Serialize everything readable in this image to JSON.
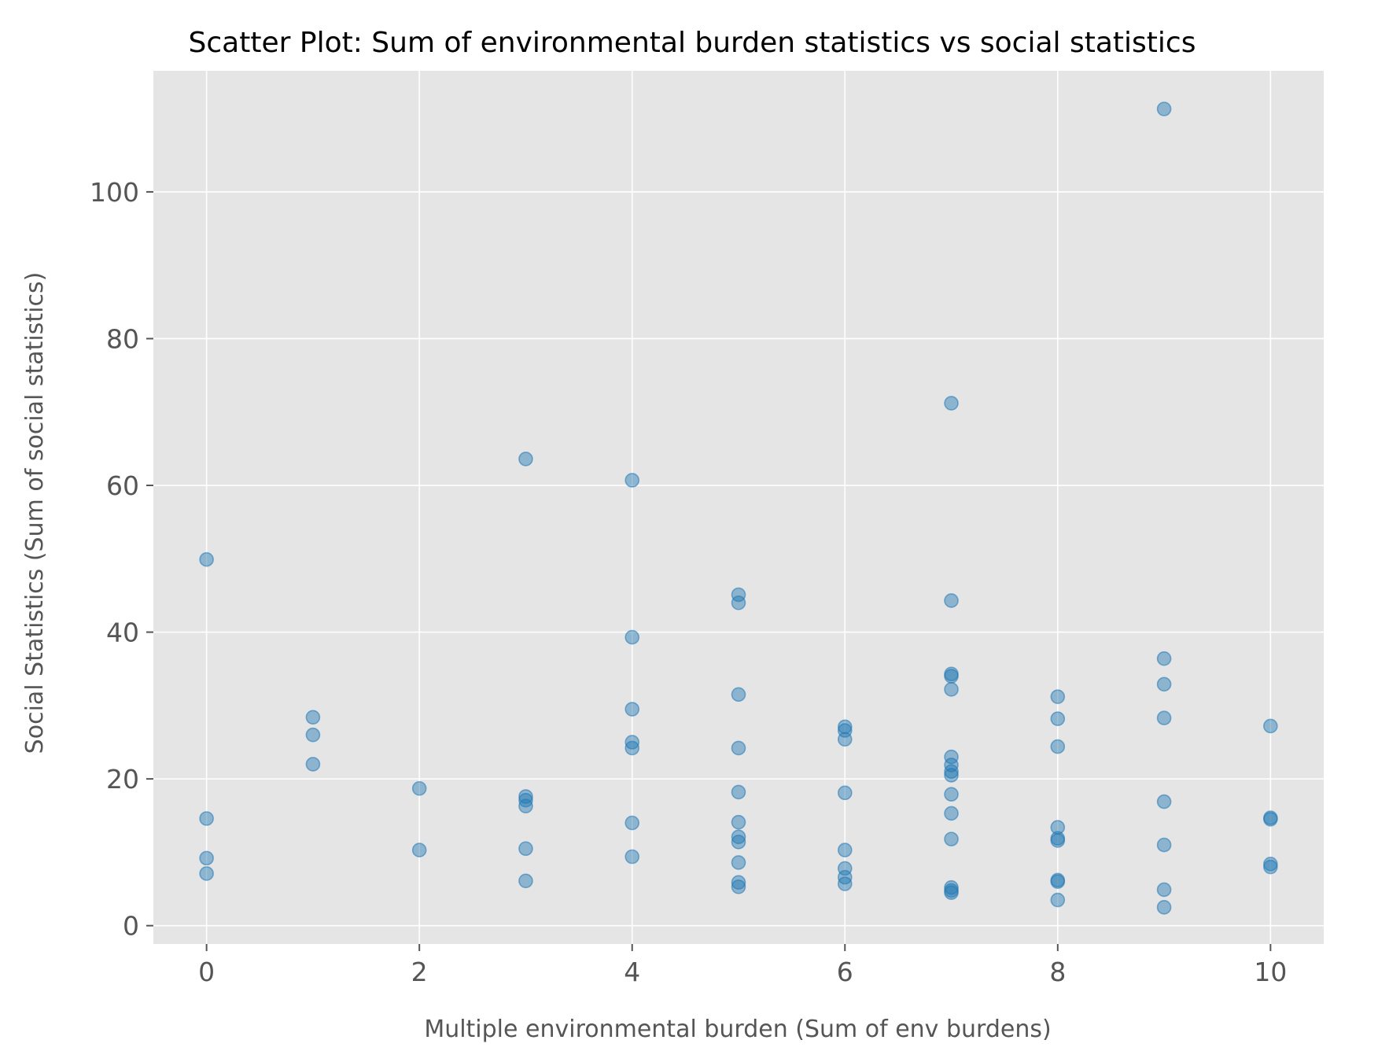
{
  "chart_data": {
    "type": "scatter",
    "title": "Scatter Plot: Sum of environmental burden statistics vs social statistics",
    "xlabel": "Multiple environmental burden (Sum of env burdens)",
    "ylabel": "Social Statistics (Sum of social statistics)",
    "xlim": [
      -0.5,
      10.5
    ],
    "ylim": [
      -2.5,
      116.5
    ],
    "xticks": [
      0,
      2,
      4,
      6,
      8,
      10
    ],
    "yticks": [
      0,
      20,
      40,
      60,
      80,
      100
    ],
    "grid": true,
    "colors": {
      "background": "#e5e5e5",
      "point": "#1f77b4",
      "grid": "#ffffff",
      "tick_text": "#555555",
      "title_text": "#000000"
    },
    "series": [
      {
        "points": [
          [
            0,
            49.9
          ],
          [
            0,
            14.6
          ],
          [
            0,
            9.2
          ],
          [
            0,
            7.1
          ],
          [
            1,
            28.4
          ],
          [
            1,
            26.0
          ],
          [
            1,
            22.0
          ],
          [
            2,
            18.7
          ],
          [
            2,
            10.3
          ],
          [
            3,
            63.6
          ],
          [
            3,
            17.6
          ],
          [
            3,
            17.1
          ],
          [
            3,
            16.3
          ],
          [
            3,
            10.5
          ],
          [
            3,
            6.1
          ],
          [
            4,
            60.7
          ],
          [
            4,
            39.3
          ],
          [
            4,
            29.5
          ],
          [
            4,
            25.0
          ],
          [
            4,
            24.2
          ],
          [
            4,
            14.0
          ],
          [
            4,
            9.4
          ],
          [
            5,
            45.1
          ],
          [
            5,
            44.0
          ],
          [
            5,
            31.5
          ],
          [
            5,
            24.2
          ],
          [
            5,
            18.2
          ],
          [
            5,
            14.1
          ],
          [
            5,
            12.1
          ],
          [
            5,
            11.4
          ],
          [
            5,
            8.6
          ],
          [
            5,
            5.9
          ],
          [
            5,
            5.3
          ],
          [
            6,
            27.1
          ],
          [
            6,
            26.6
          ],
          [
            6,
            25.4
          ],
          [
            6,
            18.1
          ],
          [
            6,
            10.3
          ],
          [
            6,
            7.8
          ],
          [
            6,
            6.6
          ],
          [
            6,
            5.7
          ],
          [
            7,
            71.2
          ],
          [
            7,
            44.3
          ],
          [
            7,
            34.3
          ],
          [
            7,
            34.0
          ],
          [
            7,
            32.2
          ],
          [
            7,
            23.0
          ],
          [
            7,
            21.9
          ],
          [
            7,
            21.0
          ],
          [
            7,
            20.5
          ],
          [
            7,
            17.9
          ],
          [
            7,
            15.3
          ],
          [
            7,
            11.8
          ],
          [
            7,
            5.2
          ],
          [
            7,
            4.8
          ],
          [
            7,
            4.5
          ],
          [
            8,
            31.2
          ],
          [
            8,
            28.2
          ],
          [
            8,
            24.4
          ],
          [
            8,
            13.4
          ],
          [
            8,
            11.9
          ],
          [
            8,
            11.6
          ],
          [
            8,
            6.2
          ],
          [
            8,
            6.0
          ],
          [
            8,
            3.5
          ],
          [
            9,
            111.3
          ],
          [
            9,
            36.4
          ],
          [
            9,
            32.9
          ],
          [
            9,
            28.3
          ],
          [
            9,
            16.9
          ],
          [
            9,
            11.0
          ],
          [
            9,
            4.9
          ],
          [
            9,
            2.5
          ],
          [
            10,
            27.2
          ],
          [
            10,
            14.7
          ],
          [
            10,
            14.5
          ],
          [
            10,
            8.4
          ],
          [
            10,
            8.0
          ]
        ]
      }
    ]
  }
}
